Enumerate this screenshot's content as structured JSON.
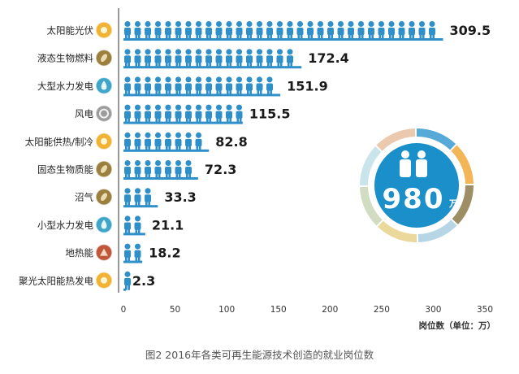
{
  "chart_data": {
    "type": "bar",
    "orientation": "horizontal",
    "categories": [
      "太阳能光伏",
      "液态生物燃料",
      "大型水力发电",
      "风电",
      "太阳能供热/制冷",
      "固态生物质能",
      "沼气",
      "小型水力发电",
      "地热能",
      "聚光太阳能热发电"
    ],
    "values": [
      309.5,
      172.4,
      151.9,
      115.5,
      82.8,
      72.3,
      33.3,
      21.1,
      18.2,
      2.3
    ],
    "value_labels": [
      "309.5",
      "172.4",
      "151.9",
      "115.5",
      "82.8",
      "72.3",
      "33.3",
      "21.1",
      "18.2",
      "2.3"
    ],
    "category_icons": [
      "sun-icon",
      "leaf-icon",
      "water-drop-icon",
      "wind-icon",
      "sun-icon",
      "leaf-icon",
      "leaf-icon",
      "water-drop-icon",
      "geothermal-icon",
      "sun-icon"
    ],
    "icon_colors": [
      "#f2b233",
      "#9a7f3e",
      "#3fa6c9",
      "#9c9c9c",
      "#f2b233",
      "#9a7f3e",
      "#9a7f3e",
      "#3fa6c9",
      "#c0563a",
      "#f2b233"
    ],
    "xlim": [
      0,
      350
    ],
    "xticks": [
      0,
      50,
      100,
      150,
      200,
      250,
      300,
      350
    ],
    "xlabel": "岗位数（单位：万）",
    "ylabel": "",
    "grid": false,
    "total": {
      "value": "980",
      "unit": "万"
    }
  },
  "caption": "图2 2016年各类可再生能源技术创造的就业岗位数",
  "colors": {
    "bar": "#2f8fc9",
    "value_text": "#1a1a1a",
    "axis": "#333333",
    "total_circle": "#1b8fc9",
    "ring": [
      "#3a9bd0",
      "#f0a93a",
      "#8c7a4a",
      "#a9cfe0",
      "#e6d28a",
      "#c9d6b8",
      "#bfe0e8",
      "#e8c0a0"
    ]
  }
}
